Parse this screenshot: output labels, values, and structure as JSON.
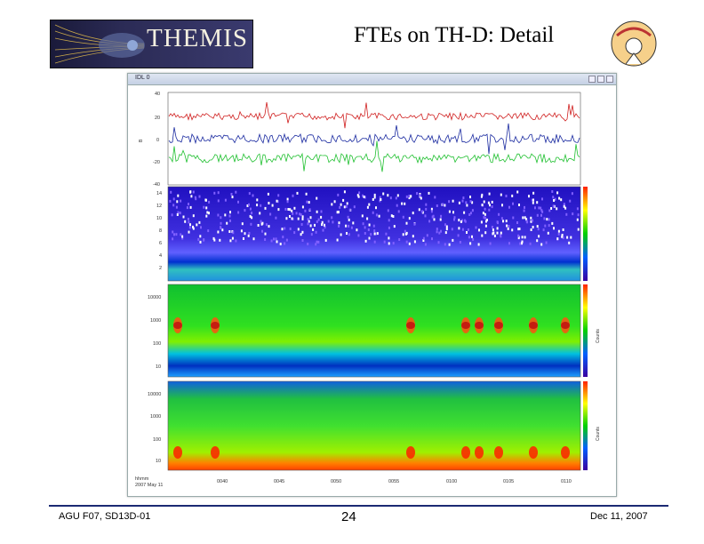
{
  "header": {
    "logo_text": "THEMIS",
    "title": "FTEs on TH-D: Detail"
  },
  "window": {
    "title": "IDL 0"
  },
  "footer": {
    "left": "AGU F07, SD13D-01",
    "center": "24",
    "right": "Dec 11, 2007"
  },
  "plot": {
    "panel1_yticks": [
      "40",
      "20",
      "0",
      "-20",
      "-40"
    ],
    "panel2_yticks": [
      "14",
      "12",
      "10",
      "8",
      "6",
      "4",
      "2"
    ],
    "panel3_yticks": [
      "10000",
      "1000",
      "100",
      "10"
    ],
    "panel4_yticks": [
      "10000",
      "1000",
      "100",
      "10"
    ],
    "time_ticks": [
      "0040",
      "0045",
      "0050",
      "0055",
      "0100",
      "0105",
      "0110"
    ],
    "time_label": "hhmm",
    "date_label": "2007 May 11",
    "panel3_colorbar": "Counts",
    "panel4_colorbar": "Counts"
  }
}
